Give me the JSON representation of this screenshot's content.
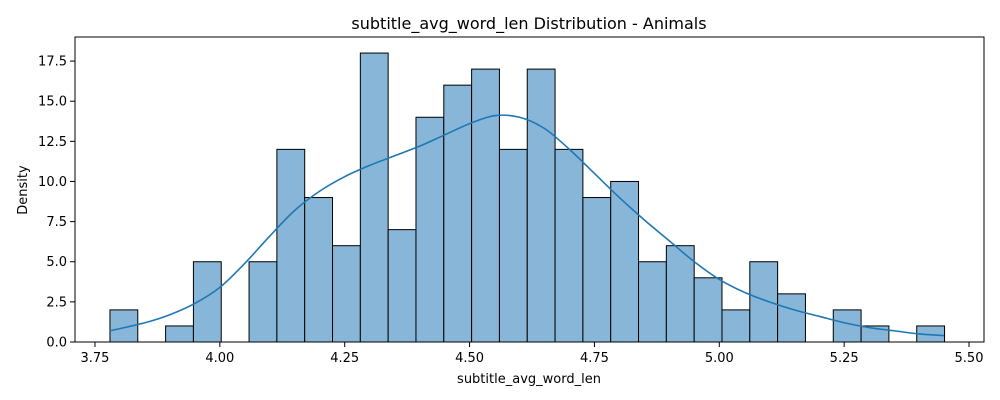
{
  "chart_data": {
    "type": "bar",
    "title": "subtitle_avg_word_len Distribution - Animals",
    "xlabel": "subtitle_avg_word_len",
    "ylabel": "Density",
    "xlim": [
      3.71,
      5.53
    ],
    "ylim": [
      0,
      19
    ],
    "x_ticks": [
      "3.75",
      "4.00",
      "4.25",
      "4.50",
      "4.75",
      "5.00",
      "5.25",
      "5.50"
    ],
    "y_ticks": [
      "0.0",
      "2.5",
      "5.0",
      "7.5",
      "10.0",
      "12.5",
      "15.0",
      "17.5"
    ],
    "bin_start": 3.78,
    "bin_width": 0.0557,
    "values": [
      2,
      0,
      1,
      5,
      0,
      5,
      12,
      9,
      6,
      18,
      7,
      14,
      16,
      17,
      12,
      17,
      12,
      9,
      10,
      5,
      6,
      4,
      2,
      5,
      3,
      0,
      2,
      1,
      0,
      1
    ],
    "kde": {
      "x": [
        3.78,
        3.85,
        3.9,
        3.95,
        4.0,
        4.05,
        4.1,
        4.15,
        4.2,
        4.25,
        4.3,
        4.35,
        4.4,
        4.45,
        4.5,
        4.55,
        4.6,
        4.65,
        4.7,
        4.75,
        4.8,
        4.85,
        4.9,
        4.95,
        5.0,
        5.05,
        5.1,
        5.15,
        5.2,
        5.25,
        5.3,
        5.35,
        5.4,
        5.45
      ],
      "y": [
        0.7,
        1.2,
        1.7,
        2.4,
        3.4,
        4.9,
        6.6,
        8.2,
        9.4,
        10.3,
        11.0,
        11.6,
        12.2,
        12.9,
        13.6,
        14.1,
        14.0,
        13.3,
        12.0,
        10.5,
        9.0,
        7.6,
        6.3,
        5.0,
        3.9,
        3.1,
        2.5,
        2.0,
        1.6,
        1.2,
        0.9,
        0.7,
        0.5,
        0.4
      ]
    },
    "grid": false,
    "colors": {
      "bar_fill": "#88b6d9",
      "bar_edge": "#000000",
      "kde_line": "#1f77b4"
    }
  }
}
